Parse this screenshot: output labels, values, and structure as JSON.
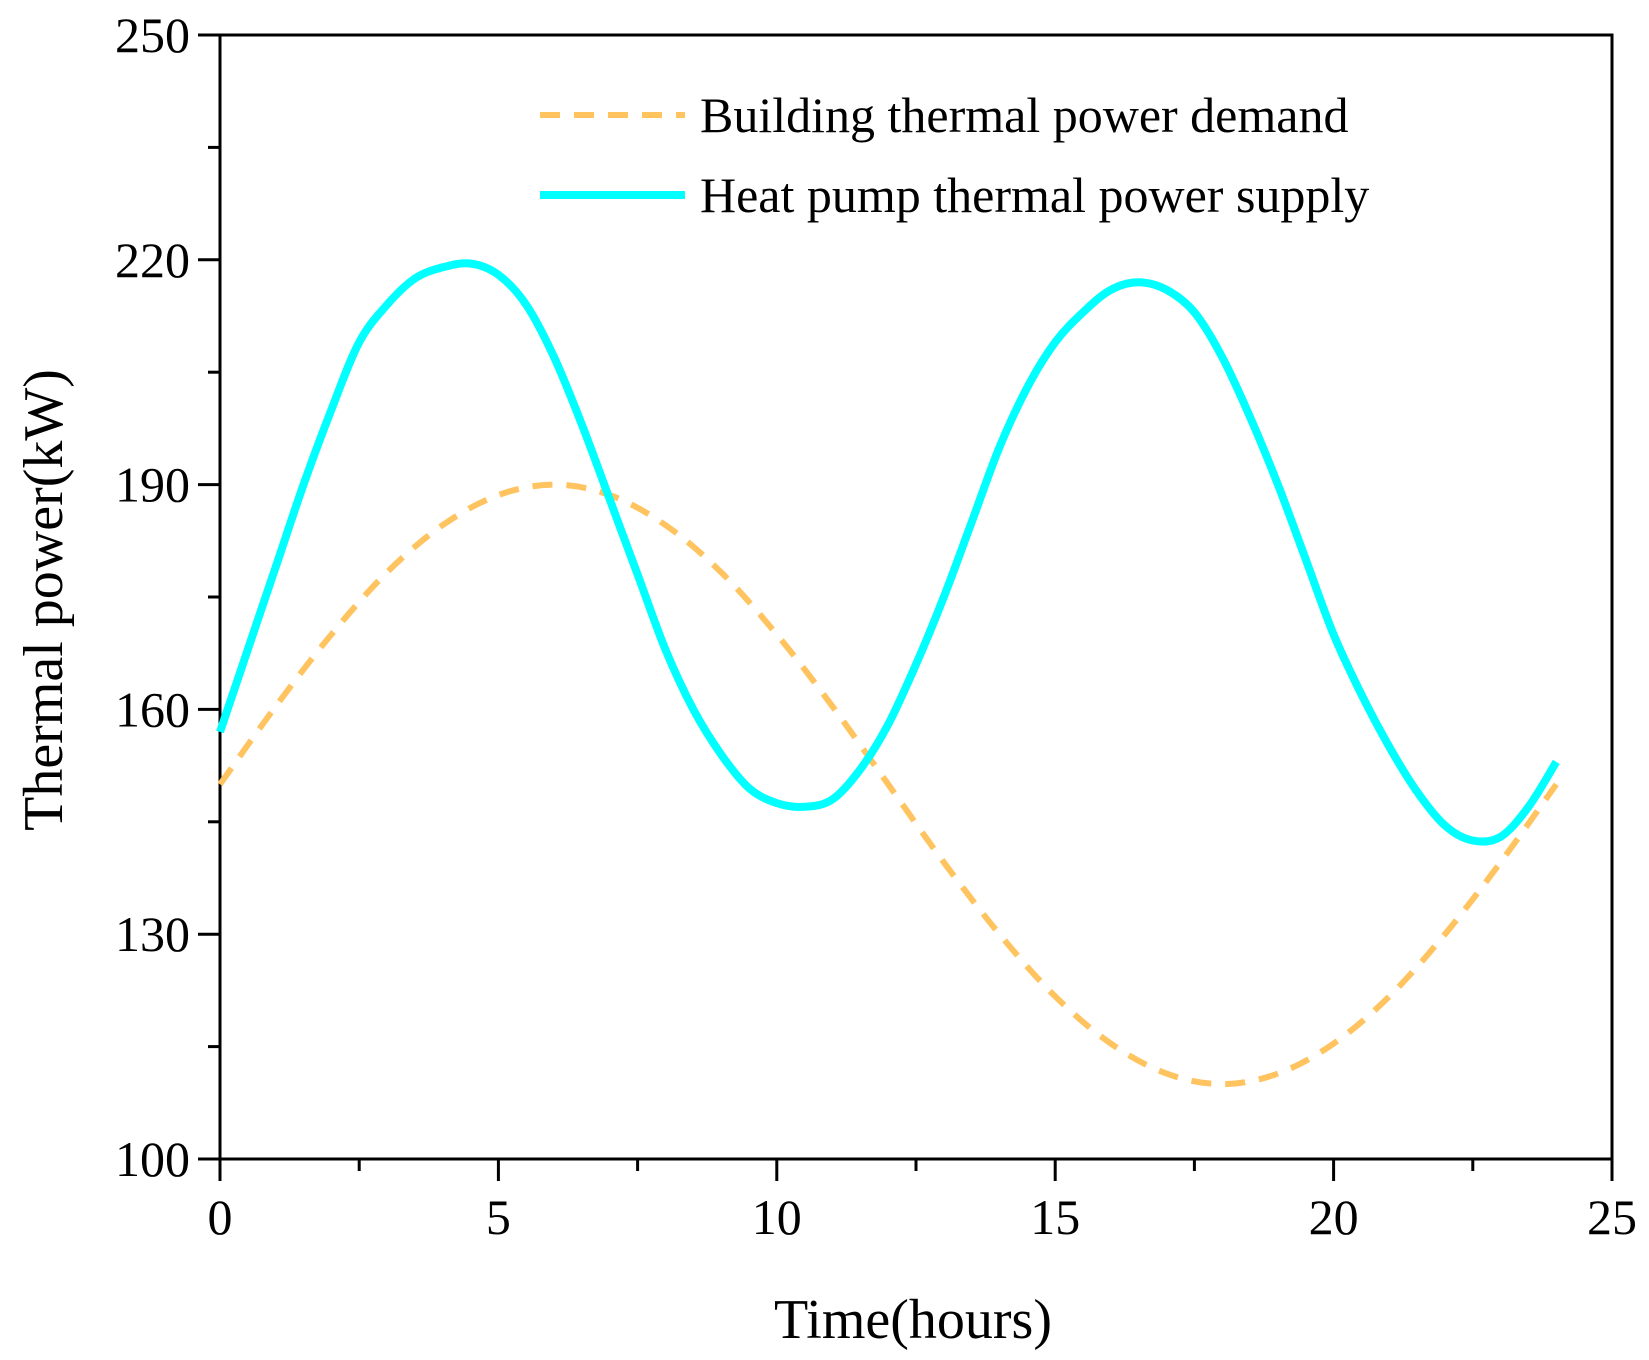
{
  "chart_data": {
    "type": "line",
    "title": "",
    "xlabel": "Time(hours)",
    "ylabel": "Thermal power(kW)",
    "xlim": [
      0,
      25
    ],
    "ylim": [
      100,
      250
    ],
    "xticks": [
      0,
      5,
      10,
      15,
      20,
      25
    ],
    "yticks": [
      100,
      130,
      160,
      190,
      220,
      250
    ],
    "grid": false,
    "legend_position": "top-right",
    "series": [
      {
        "name": "Building thermal power demand",
        "color": "#FFC35F",
        "style": "dashed",
        "x": [
          0,
          1,
          2,
          3,
          4,
          5,
          6,
          7,
          8,
          9,
          10,
          11,
          12,
          13,
          14,
          15,
          16,
          17,
          18,
          19,
          20,
          21,
          22,
          23,
          24
        ],
        "y": [
          150,
          160.4,
          170,
          178.3,
          184.6,
          188.6,
          190,
          188.6,
          184.6,
          178.3,
          170,
          160.4,
          150,
          139.6,
          130,
          121.7,
          115.4,
          111.4,
          110,
          111.4,
          115.4,
          121.7,
          130,
          139.6,
          150
        ]
      },
      {
        "name": "Heat pump thermal power supply",
        "color": "#00FFFF",
        "style": "solid",
        "x": [
          0,
          0.5,
          1,
          1.5,
          2,
          2.5,
          3,
          3.5,
          4,
          4.5,
          5,
          5.5,
          6,
          6.5,
          7,
          7.5,
          8,
          8.5,
          9,
          9.5,
          10,
          10.5,
          11,
          11.5,
          12,
          12.5,
          13,
          13.5,
          14,
          14.5,
          15,
          15.5,
          16,
          16.5,
          17,
          17.5,
          18,
          18.5,
          19,
          19.5,
          20,
          20.5,
          21,
          21.5,
          22,
          22.5,
          23,
          23.5,
          24
        ],
        "y": [
          157,
          168,
          179,
          190,
          200,
          209,
          214,
          217.5,
          219,
          219.5,
          218,
          214,
          207,
          198,
          188,
          178,
          168,
          160,
          154,
          149.5,
          147.5,
          147,
          148,
          152,
          158,
          166,
          175,
          185,
          195,
          203,
          209,
          213,
          216,
          217,
          216,
          213,
          207,
          199,
          190,
          180,
          170,
          162,
          155,
          149,
          144.5,
          142.5,
          143,
          147,
          153
        ]
      }
    ]
  }
}
